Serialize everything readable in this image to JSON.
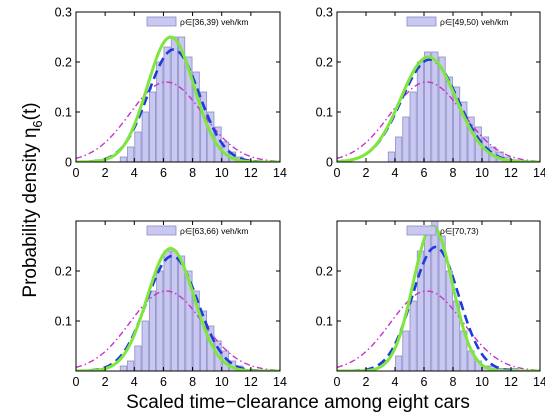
{
  "figure": {
    "ylabel_main": "Probability density η",
    "ylabel_sub": "6",
    "ylabel_tail": "(t)",
    "xlabel": "Scaled time−clearance among eight cars"
  },
  "colors": {
    "bar_fill": "#c8c8f0",
    "bar_stroke": "#8c8cc8",
    "green": "#7ee63c",
    "blue": "#1e3cdc",
    "magenta": "#c832c8"
  },
  "chart_data": [
    {
      "type": "bar",
      "legend": "ρ∈[36,39) veh/km",
      "xlim": [
        0,
        14
      ],
      "ylim": [
        0,
        0.3
      ],
      "xticks": [
        "0",
        "2",
        "4",
        "6",
        "8",
        "10",
        "12",
        "14"
      ],
      "yticks": [
        "0",
        "0.1",
        "0.2",
        "0.3"
      ],
      "bins": [
        3.0,
        3.5,
        4.0,
        4.5,
        5.0,
        5.5,
        6.0,
        6.5,
        7.0,
        7.5,
        8.0,
        8.5,
        9.0,
        9.5,
        10.0,
        10.5,
        11.0,
        11.5
      ],
      "values": [
        0.01,
        0.03,
        0.06,
        0.1,
        0.14,
        0.2,
        0.23,
        0.25,
        0.25,
        0.21,
        0.18,
        0.14,
        0.1,
        0.07,
        0.04,
        0.02,
        0.01,
        0.005
      ],
      "curves": {
        "green": {
          "mean": 6.5,
          "sd": 1.6,
          "amp": 0.25
        },
        "blue": {
          "mean": 6.7,
          "sd": 1.75,
          "amp": 0.225
        },
        "magenta": {
          "mean": 6.2,
          "sd": 2.5,
          "amp": 0.16
        }
      }
    },
    {
      "type": "bar",
      "legend": "ρ∈[49,50) veh/km",
      "xlim": [
        0,
        14
      ],
      "ylim": [
        0,
        0.3
      ],
      "xticks": [
        "0",
        "2",
        "4",
        "6",
        "8",
        "10",
        "12",
        "14"
      ],
      "yticks": [
        "0",
        "0.1",
        "0.2",
        "0.3"
      ],
      "bins": [
        3.5,
        4.0,
        4.5,
        5.0,
        5.5,
        6.0,
        6.5,
        7.0,
        7.5,
        8.0,
        8.5,
        9.0,
        9.5,
        10.0,
        10.5,
        11.0,
        11.5
      ],
      "values": [
        0.02,
        0.05,
        0.09,
        0.14,
        0.2,
        0.22,
        0.22,
        0.21,
        0.17,
        0.15,
        0.12,
        0.09,
        0.07,
        0.05,
        0.03,
        0.02,
        0.01
      ],
      "curves": {
        "green": {
          "mean": 6.3,
          "sd": 1.9,
          "amp": 0.21
        },
        "blue": {
          "mean": 6.4,
          "sd": 1.95,
          "amp": 0.205
        },
        "magenta": {
          "mean": 6.2,
          "sd": 2.5,
          "amp": 0.16
        }
      }
    },
    {
      "type": "bar",
      "legend": "ρ∈[63,66) veh/km",
      "xlim": [
        0,
        14
      ],
      "ylim": [
        0,
        0.3
      ],
      "xticks": [
        "0",
        "2",
        "4",
        "6",
        "8",
        "10",
        "12",
        "14"
      ],
      "yticks": [
        "0.1",
        "0.2"
      ],
      "bins": [
        3.0,
        3.5,
        4.0,
        4.5,
        5.0,
        5.5,
        6.0,
        6.5,
        7.0,
        7.5,
        8.0,
        8.5,
        9.0,
        9.5,
        10.0,
        10.5,
        11.0
      ],
      "values": [
        0.01,
        0.02,
        0.05,
        0.1,
        0.16,
        0.2,
        0.24,
        0.24,
        0.23,
        0.2,
        0.16,
        0.12,
        0.09,
        0.06,
        0.04,
        0.02,
        0.01
      ],
      "curves": {
        "green": {
          "mean": 6.5,
          "sd": 1.6,
          "amp": 0.245
        },
        "blue": {
          "mean": 6.6,
          "sd": 1.75,
          "amp": 0.23
        },
        "magenta": {
          "mean": 6.2,
          "sd": 2.5,
          "amp": 0.16
        }
      }
    },
    {
      "type": "bar",
      "legend": "ρ∈[70,73)",
      "xlim": [
        0,
        14
      ],
      "ylim": [
        0,
        0.3
      ],
      "xticks": [
        "0",
        "2",
        "4",
        "6",
        "8",
        "10",
        "12",
        "14"
      ],
      "yticks": [
        "0.1",
        "0.2"
      ],
      "bins": [
        4.0,
        4.5,
        5.0,
        5.5,
        6.0,
        6.5,
        7.0,
        7.5,
        8.0,
        8.5,
        9.0,
        9.5,
        10.0,
        10.5,
        11.0,
        11.5,
        12.0
      ],
      "values": [
        0.03,
        0.08,
        0.14,
        0.24,
        0.28,
        0.3,
        0.27,
        0.2,
        0.14,
        0.08,
        0.04,
        0.02,
        0.01,
        0.01,
        0.005,
        0.005,
        0.005
      ],
      "curves": {
        "green": {
          "mean": 6.6,
          "sd": 1.35,
          "amp": 0.29
        },
        "blue": {
          "mean": 6.8,
          "sd": 1.6,
          "amp": 0.248
        },
        "magenta": {
          "mean": 6.2,
          "sd": 2.5,
          "amp": 0.16
        }
      }
    }
  ]
}
